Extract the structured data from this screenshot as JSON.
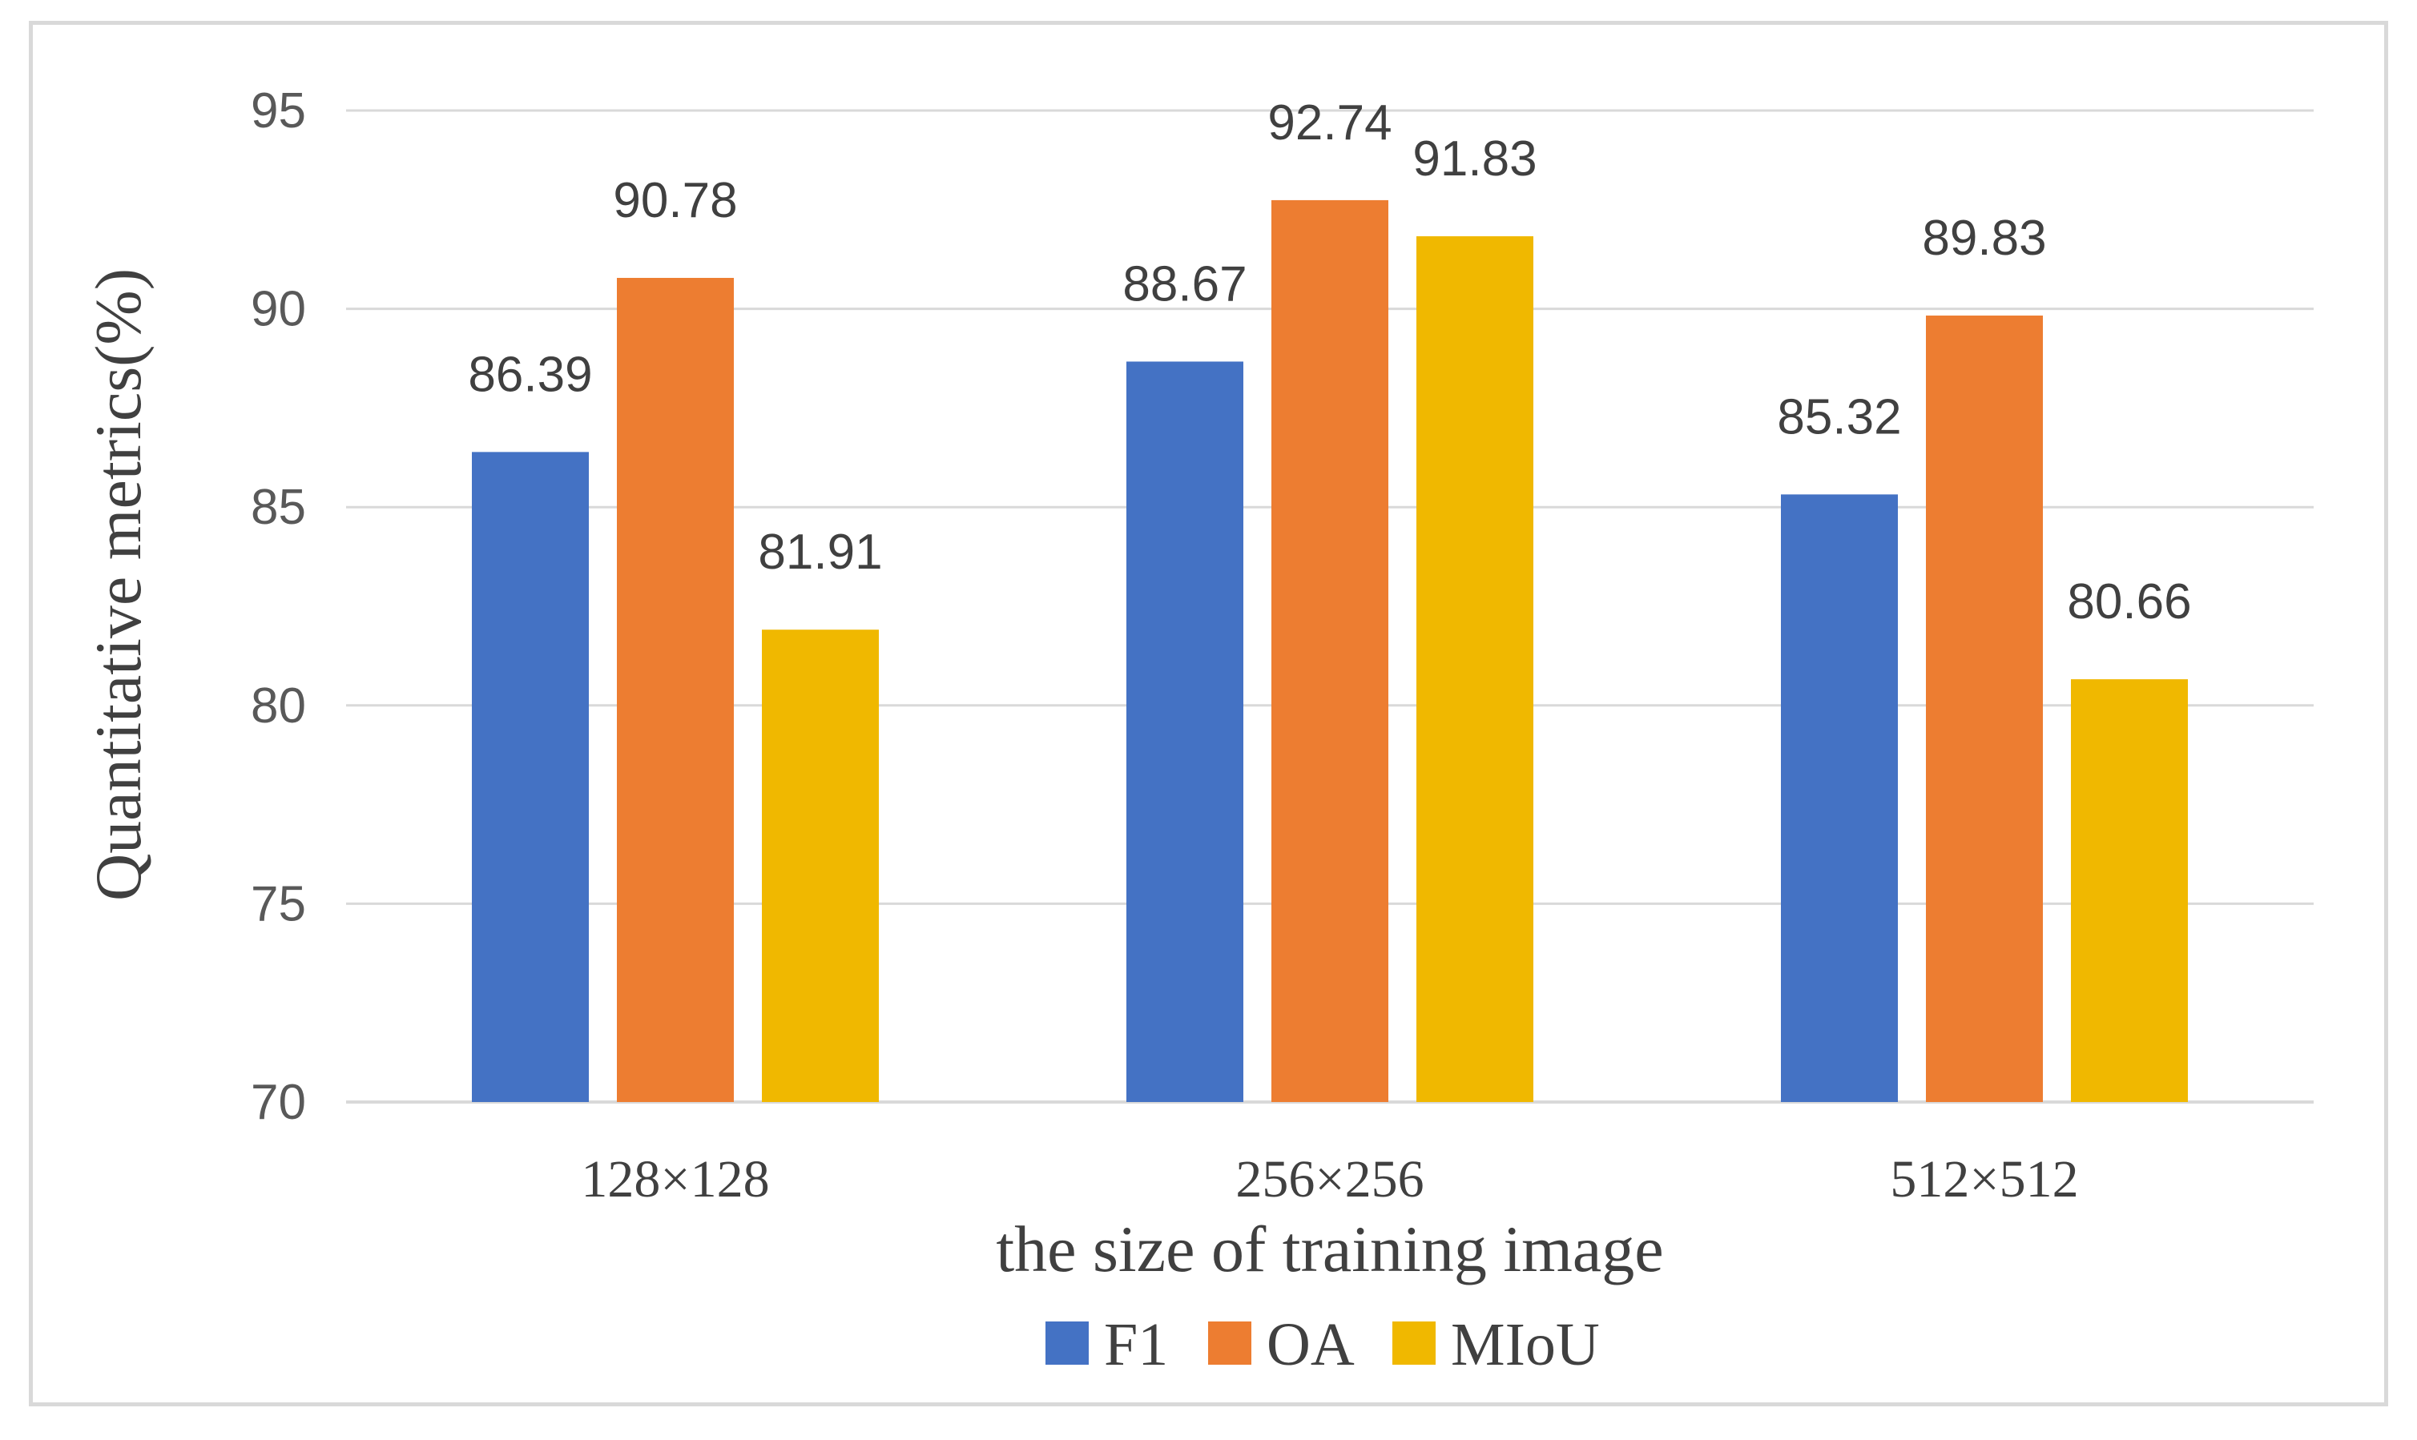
{
  "chart_data": {
    "type": "bar",
    "title": "",
    "xlabel": "the size of training image",
    "ylabel": "Quantitative metrics(%)",
    "categories": [
      "128×128",
      "256×256",
      "512×512"
    ],
    "series": [
      {
        "name": "F1",
        "color": "#4472c4",
        "values": [
          86.39,
          88.67,
          85.32
        ]
      },
      {
        "name": "OA",
        "color": "#ed7d31",
        "values": [
          90.78,
          92.74,
          89.83
        ]
      },
      {
        "name": "MIoU",
        "color": "#f0b800",
        "values": [
          81.91,
          91.83,
          80.66
        ]
      }
    ],
    "ylim": [
      70,
      95
    ],
    "yticks": [
      70,
      75,
      80,
      85,
      90,
      95
    ],
    "grid": true,
    "legend_position": "bottom"
  }
}
